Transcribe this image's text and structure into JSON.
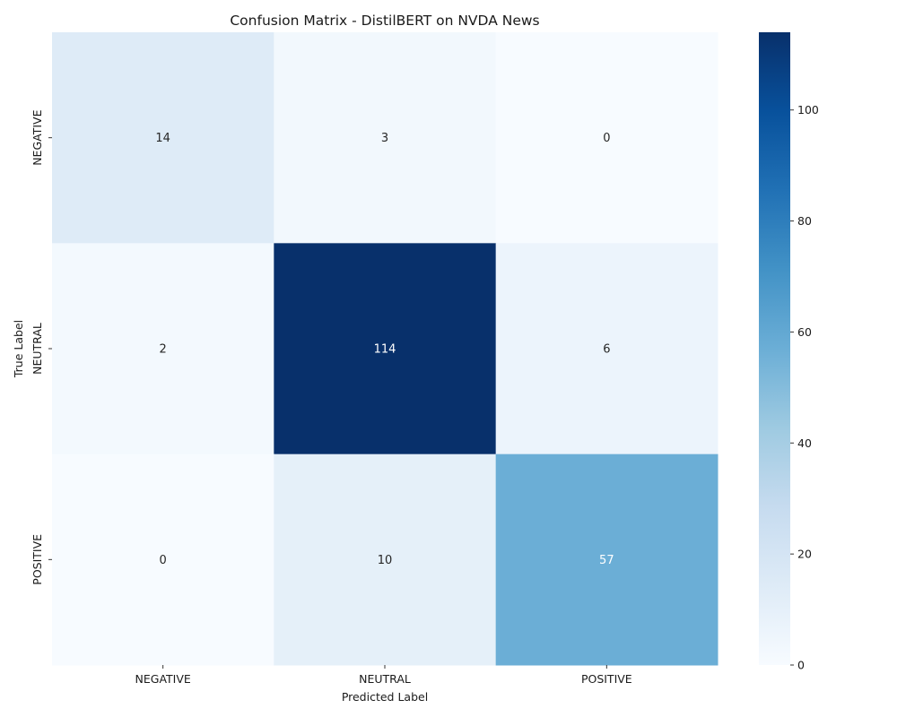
{
  "chart_data": {
    "type": "heatmap",
    "title": "Confusion Matrix - DistilBERT on NVDA News",
    "xlabel": "Predicted Label",
    "ylabel": "True Label",
    "x_categories": [
      "NEGATIVE",
      "NEUTRAL",
      "POSITIVE"
    ],
    "y_categories": [
      "NEGATIVE",
      "NEUTRAL",
      "POSITIVE"
    ],
    "values": [
      [
        14,
        3,
        0
      ],
      [
        2,
        114,
        6
      ],
      [
        0,
        10,
        57
      ]
    ],
    "colormap": "Blues",
    "colorbar": {
      "range": [
        0,
        114
      ],
      "ticks": [
        0,
        20,
        40,
        60,
        80,
        100
      ]
    },
    "colors": {
      "low": "#f7fbff",
      "high": "#08306b",
      "annotation_dark": "#262626",
      "annotation_light": "#ffffff"
    }
  }
}
